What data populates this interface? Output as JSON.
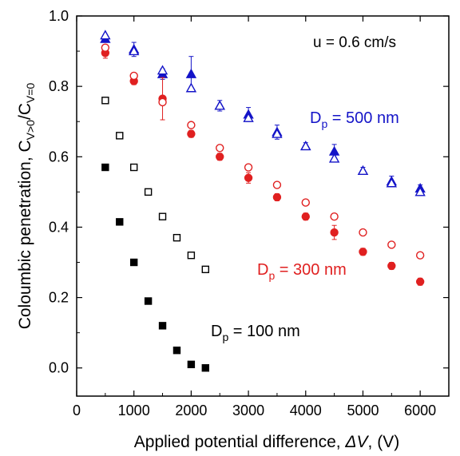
{
  "chart_data": {
    "type": "scatter",
    "xlabel_main": "Applied potential difference, ",
    "xlabel_symbol": "ΔV",
    "xlabel_unit": ", (V)",
    "ylabel_main": "Coloumbic penetration, C",
    "ylabel_sub1": "V>0",
    "ylabel_mid": "/C",
    "ylabel_sub2": "V=0",
    "xlim": [
      0,
      6500
    ],
    "ylim": [
      -0.08,
      1.0
    ],
    "xticks": [
      0,
      1000,
      2000,
      3000,
      4000,
      5000,
      6000
    ],
    "yticks": [
      0.0,
      0.2,
      0.4,
      0.6,
      0.8,
      1.0
    ],
    "xtick_labels": [
      "0",
      "1000",
      "2000",
      "3000",
      "4000",
      "5000",
      "6000"
    ],
    "ytick_labels": [
      "0.0",
      "0.2",
      "0.4",
      "0.6",
      "0.8",
      "1.0"
    ],
    "grid": false,
    "annotations": {
      "velocity": "u = 0.6 cm/s",
      "d500_main": "D",
      "d500_sub": "p",
      "d500_rest": " = 500 nm",
      "d300_main": "D",
      "d300_sub": "p",
      "d300_rest": " = 300 nm",
      "d100_main": "D",
      "d100_sub": "p",
      "d100_rest": " = 100 nm"
    },
    "colors": {
      "blue": "#1414c8",
      "red": "#e02020",
      "black": "#000000"
    },
    "series": [
      {
        "marker": "triangle-filled",
        "color": "#1414c8",
        "group": "500 nm",
        "x": [
          500,
          1000,
          1500,
          2000,
          2500,
          3000,
          3500,
          4000,
          4500,
          5000,
          5500,
          6000
        ],
        "y": [
          0.935,
          0.905,
          0.835,
          0.835,
          0.745,
          0.72,
          0.67,
          0.63,
          0.615,
          0.56,
          0.53,
          0.51
        ],
        "err": [
          0.01,
          0.02,
          0.015,
          0.05,
          0.015,
          0.02,
          0.02,
          0.01,
          0.02,
          0.01,
          0.015,
          0.01
        ]
      },
      {
        "marker": "triangle-open",
        "color": "#1414c8",
        "group": "500 nm",
        "x": [
          500,
          1000,
          1500,
          2000,
          2500,
          3000,
          3500,
          4000,
          4500,
          5000,
          5500,
          6000
        ],
        "y": [
          0.945,
          0.9,
          0.845,
          0.795,
          0.745,
          0.71,
          0.665,
          0.63,
          0.595,
          0.56,
          0.525,
          0.5
        ],
        "err": []
      },
      {
        "marker": "circle-filled",
        "color": "#e02020",
        "group": "300 nm",
        "x": [
          500,
          1000,
          1500,
          2000,
          2500,
          3000,
          3500,
          4000,
          4500,
          5000,
          5500,
          6000
        ],
        "y": [
          0.895,
          0.815,
          0.765,
          0.665,
          0.6,
          0.54,
          0.485,
          0.43,
          0.385,
          0.33,
          0.29,
          0.245
        ],
        "err": [
          0.015,
          0.01,
          0.06,
          0.01,
          0.01,
          0.015,
          0.01,
          0.01,
          0.02,
          0.01,
          0.01,
          0.01
        ]
      },
      {
        "marker": "circle-open",
        "color": "#e02020",
        "group": "300 nm",
        "x": [
          500,
          1000,
          1500,
          2000,
          2500,
          3000,
          3500,
          4000,
          4500,
          5000,
          5500,
          6000
        ],
        "y": [
          0.91,
          0.83,
          0.755,
          0.69,
          0.625,
          0.57,
          0.52,
          0.47,
          0.43,
          0.385,
          0.35,
          0.32
        ],
        "err": []
      },
      {
        "marker": "square-filled",
        "color": "#000000",
        "group": "100 nm",
        "x": [
          500,
          750,
          1000,
          1250,
          1500,
          1750,
          2000,
          2250
        ],
        "y": [
          0.57,
          0.415,
          0.3,
          0.19,
          0.12,
          0.05,
          0.01,
          0.0
        ],
        "err": []
      },
      {
        "marker": "square-open",
        "color": "#000000",
        "group": "100 nm",
        "x": [
          500,
          750,
          1000,
          1250,
          1500,
          1750,
          2000,
          2250
        ],
        "y": [
          0.76,
          0.66,
          0.57,
          0.5,
          0.43,
          0.37,
          0.32,
          0.28
        ],
        "err": []
      }
    ]
  }
}
